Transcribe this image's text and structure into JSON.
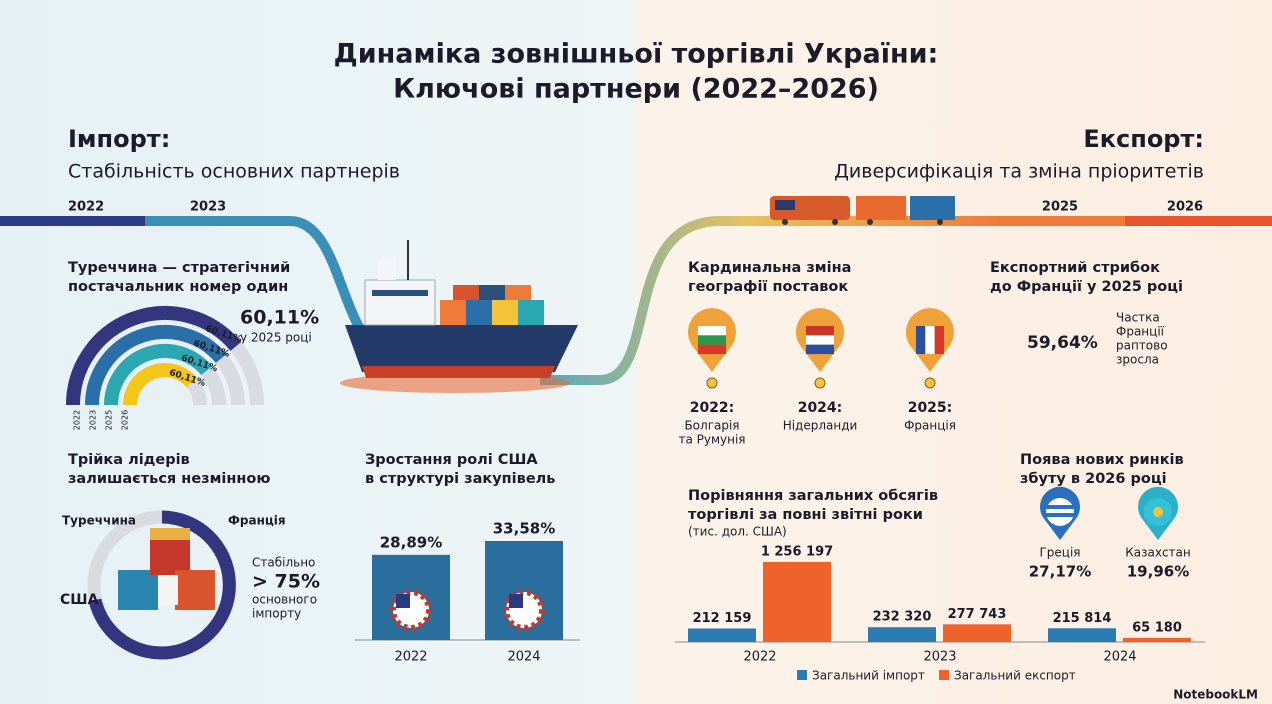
{
  "title": [
    "Динаміка зовнішньої торгівлі України:",
    "Ключові партнери (2022–2026)"
  ],
  "import": {
    "heading": "Імпорт:",
    "subheading": "Стабільність основних партнерів",
    "timeline": [
      "2022",
      "2023"
    ]
  },
  "export": {
    "heading": "Експорт:",
    "subheading": "Диверсифікація та зміна пріоритетів",
    "timeline": [
      "2025",
      "2026"
    ]
  },
  "turkey": {
    "title": [
      "Туреччина — стратегічний",
      "постачальник номер один"
    ],
    "value_label": "60,11%",
    "caption": "у 2025 році",
    "rings": [
      {
        "year": "2022",
        "label": "60,11%"
      },
      {
        "year": "2023",
        "label": "60,11%"
      },
      {
        "year": "2025",
        "label": "60,11%"
      },
      {
        "year": "2026",
        "label": "60,11%"
      }
    ]
  },
  "leaders": {
    "title": [
      "Трійка лідерів",
      "залишається незмінною"
    ],
    "partners": [
      "Туреччина",
      "Франція",
      "США"
    ],
    "note": [
      "Стабільно",
      "> 75%",
      "основного",
      "імпорту"
    ]
  },
  "usa": {
    "title": [
      "Зростання ролі США",
      "в структурі закупівель"
    ],
    "chart_data": {
      "type": "bar",
      "categories": [
        "2022",
        "2024"
      ],
      "values": [
        28.89,
        33.58
      ],
      "value_labels": [
        "28,89%",
        "33,58%"
      ],
      "color": "#2a6e9e"
    }
  },
  "geography": {
    "title": [
      "Кардинальна зміна",
      "географії поставок"
    ],
    "stops": [
      {
        "year": "2022:",
        "label": [
          "Болгарія",
          "та Румунія"
        ]
      },
      {
        "year": "2024:",
        "label": [
          "Нідерланди"
        ]
      },
      {
        "year": "2025:",
        "label": [
          "Франція"
        ]
      }
    ]
  },
  "france": {
    "title": [
      "Експортний стрибок",
      "до Франції у 2025 році"
    ],
    "value_label": "59,64%",
    "caption": [
      "Частка",
      "Франції",
      "раптово",
      "зросла"
    ]
  },
  "markets": {
    "title": [
      "Поява нових ринків",
      "збуту в 2026 році"
    ],
    "items": [
      {
        "name": "Греція",
        "value_label": "27,17%"
      },
      {
        "name": "Казахстан",
        "value_label": "19,96%"
      }
    ]
  },
  "trade": {
    "title": [
      "Порівняння загальних обсягів",
      "торгівлі за повні звітні роки"
    ],
    "unit": "(тис. дол. США)",
    "chart_data": {
      "type": "bar",
      "categories": [
        "2022",
        "2023",
        "2024"
      ],
      "series": [
        {
          "name": "Загальний імпорт",
          "color": "#2b7cb3",
          "values": [
            212159,
            232320,
            215814
          ],
          "value_labels": [
            "212 159",
            "232 320",
            "215 814"
          ]
        },
        {
          "name": "Загальний експорт",
          "color": "#f0622c",
          "values": [
            1256197,
            277743,
            65180
          ],
          "value_labels": [
            "1 256 197",
            "277 743",
            "65 180"
          ]
        }
      ]
    }
  },
  "watermark": "NotebookLM"
}
